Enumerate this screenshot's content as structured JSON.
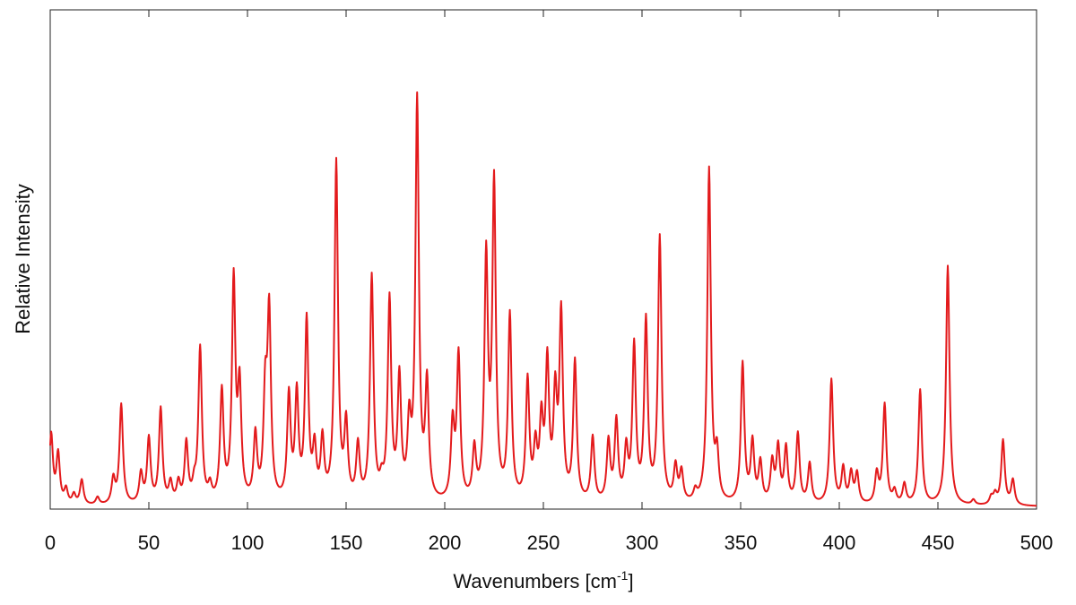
{
  "chart_data": {
    "type": "line",
    "title": "",
    "xlabel": "Wavenumbers [cm",
    "xlabel_sup": "-1",
    "xlabel_close": "]",
    "ylabel": "Relative Intensity",
    "xlim": [
      0,
      500
    ],
    "ylim": [
      0,
      1
    ],
    "x_ticks": [
      0,
      50,
      100,
      150,
      200,
      250,
      300,
      350,
      400,
      450,
      500
    ],
    "y_tick_labels": false,
    "grid": false,
    "legend": "none",
    "line_color": "#e31a1c",
    "peak_width": 1.05,
    "baseline_offset": 0.005,
    "series": [
      {
        "peaks": [
          [
            0.5,
            0.14
          ],
          [
            4,
            0.1
          ],
          [
            8,
            0.03
          ],
          [
            12,
            0.02
          ],
          [
            16,
            0.05
          ],
          [
            24,
            0.015
          ],
          [
            32,
            0.05
          ],
          [
            36,
            0.2
          ],
          [
            46,
            0.06
          ],
          [
            50,
            0.13
          ],
          [
            56,
            0.19
          ],
          [
            61,
            0.04
          ],
          [
            65,
            0.04
          ],
          [
            69,
            0.12
          ],
          [
            73,
            0.03
          ],
          [
            76,
            0.31
          ],
          [
            81,
            0.03
          ],
          [
            87,
            0.22
          ],
          [
            93,
            0.44
          ],
          [
            96,
            0.22
          ],
          [
            104,
            0.13
          ],
          [
            109,
            0.2
          ],
          [
            111,
            0.37
          ],
          [
            121,
            0.21
          ],
          [
            125,
            0.21
          ],
          [
            130,
            0.36
          ],
          [
            134,
            0.1
          ],
          [
            138,
            0.12
          ],
          [
            145,
            0.68
          ],
          [
            150,
            0.15
          ],
          [
            156,
            0.11
          ],
          [
            163,
            0.45
          ],
          [
            168,
            0.03
          ],
          [
            172,
            0.4
          ],
          [
            177,
            0.24
          ],
          [
            182,
            0.14
          ],
          [
            186,
            0.8
          ],
          [
            191,
            0.23
          ],
          [
            204,
            0.15
          ],
          [
            207,
            0.29
          ],
          [
            215,
            0.1
          ],
          [
            221,
            0.48
          ],
          [
            225,
            0.63
          ],
          [
            233,
            0.37
          ],
          [
            242,
            0.24
          ],
          [
            246,
            0.1
          ],
          [
            249,
            0.15
          ],
          [
            252,
            0.27
          ],
          [
            256,
            0.2
          ],
          [
            259,
            0.37
          ],
          [
            266,
            0.28
          ],
          [
            275,
            0.13
          ],
          [
            283,
            0.12
          ],
          [
            287,
            0.16
          ],
          [
            292,
            0.1
          ],
          [
            296,
            0.31
          ],
          [
            302,
            0.36
          ],
          [
            309,
            0.53
          ],
          [
            317,
            0.07
          ],
          [
            320,
            0.06
          ],
          [
            327,
            0.02
          ],
          [
            334,
            0.67
          ],
          [
            338,
            0.09
          ],
          [
            351,
            0.28
          ],
          [
            356,
            0.12
          ],
          [
            360,
            0.08
          ],
          [
            366,
            0.08
          ],
          [
            369,
            0.11
          ],
          [
            373,
            0.11
          ],
          [
            379,
            0.14
          ],
          [
            385,
            0.08
          ],
          [
            396,
            0.25
          ],
          [
            402,
            0.07
          ],
          [
            406,
            0.06
          ],
          [
            409,
            0.06
          ],
          [
            419,
            0.06
          ],
          [
            423,
            0.2
          ],
          [
            428,
            0.025
          ],
          [
            433,
            0.04
          ],
          [
            441,
            0.23
          ],
          [
            455,
            0.48
          ],
          [
            468,
            0.01
          ],
          [
            477,
            0.015
          ],
          [
            479,
            0.02
          ],
          [
            483,
            0.13
          ],
          [
            488,
            0.05
          ]
        ]
      }
    ]
  }
}
